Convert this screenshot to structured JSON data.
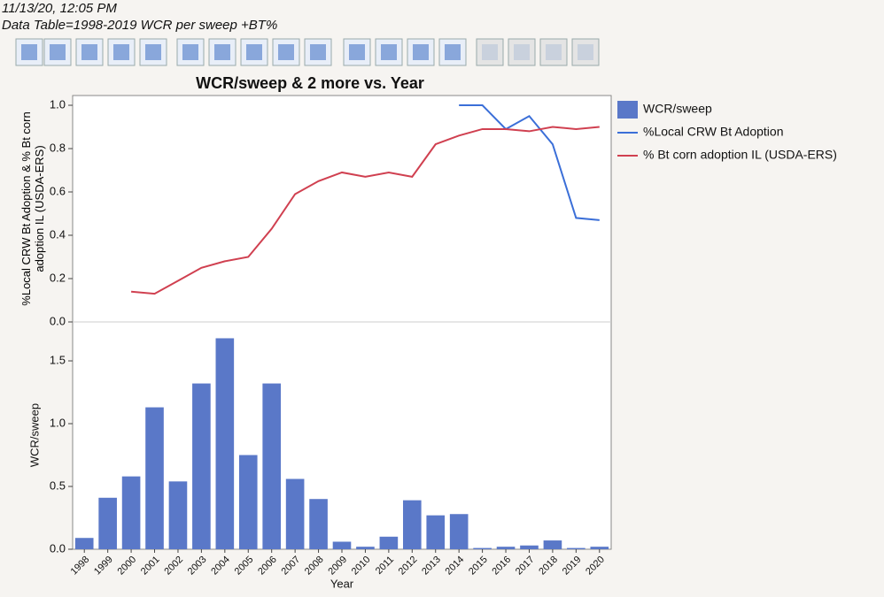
{
  "header": {
    "timestamp": "11/13/20, 12:05 PM",
    "table": "Data Table=1998-2019 WCR per sweep +BT%"
  },
  "chart_data": {
    "type": "bar-line",
    "title": "WCR/sweep & 2 more vs. Year",
    "xlabel": "Year",
    "ylabel": "%Local CRW Bt Adoption & % Bt corn adoption IL (USDA-ERS)",
    "y2label": "WCR/sweep",
    "categories": [
      "1998",
      "1999",
      "2000",
      "2001",
      "2002",
      "2003",
      "2004",
      "2005",
      "2006",
      "2007",
      "2008",
      "2009",
      "2010",
      "2011",
      "2012",
      "2013",
      "2014",
      "2015",
      "2016",
      "2017",
      "2018",
      "2019",
      "2020"
    ],
    "ylim": [
      0,
      1.045
    ],
    "yticks": [
      {
        "value": 0,
        "label": "0.0"
      },
      0.2,
      0.4,
      0.6,
      0.8,
      {
        "value": 1,
        "label": "1.0"
      }
    ],
    "y2lim": [
      0,
      1.81
    ],
    "y2ticks": [
      {
        "value": 0,
        "label": "0.0"
      },
      0.5,
      {
        "value": 1,
        "label": "1.0"
      },
      1.5
    ],
    "series": [
      {
        "name": "WCR/sweep",
        "type": "bar",
        "axis": "y2",
        "color": "#5a78c8",
        "values": [
          0.09,
          0.41,
          0.58,
          1.13,
          0.54,
          1.32,
          1.68,
          0.75,
          1.32,
          0.56,
          0.4,
          0.06,
          0.02,
          0.1,
          0.39,
          0.27,
          0.28,
          0.01,
          0.02,
          0.03,
          0.07,
          0.01,
          0.02
        ]
      },
      {
        "name": "%Local CRW Bt Adoption",
        "type": "line",
        "color": "#3b6fd8",
        "values": [
          null,
          null,
          null,
          null,
          null,
          null,
          null,
          null,
          null,
          null,
          null,
          null,
          null,
          null,
          null,
          null,
          1.0,
          1.0,
          0.89,
          0.95,
          0.82,
          0.48,
          0.47
        ]
      },
      {
        "name": "% Bt corn adoption IL (USDA-ERS)",
        "type": "line",
        "color": "#d04050",
        "values": [
          null,
          null,
          0.14,
          0.13,
          0.19,
          0.25,
          0.28,
          0.3,
          0.43,
          0.59,
          0.65,
          0.69,
          0.67,
          0.69,
          0.67,
          0.82,
          0.86,
          0.89,
          0.89,
          0.88,
          0.9,
          0.89,
          0.9
        ]
      }
    ]
  }
}
